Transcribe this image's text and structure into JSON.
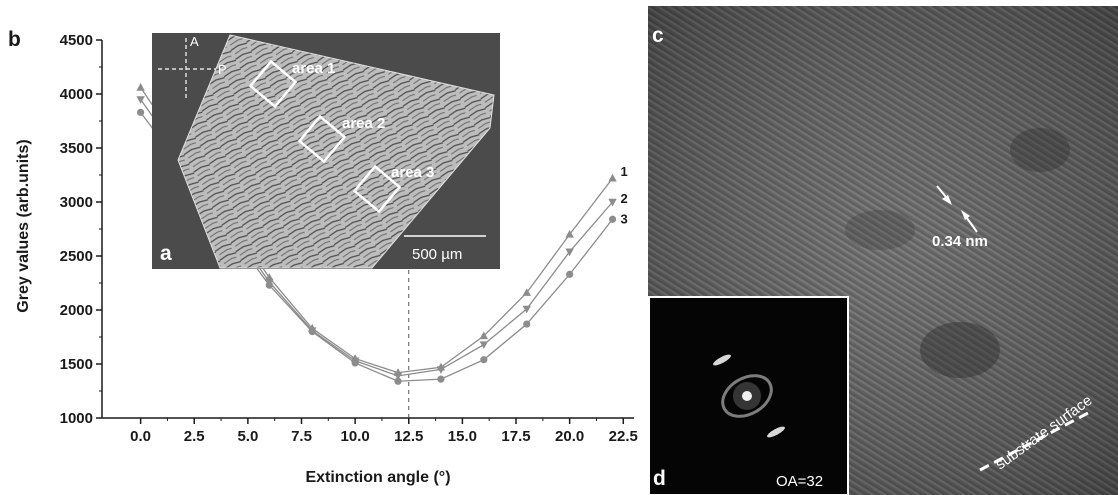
{
  "panels": {
    "b": {
      "letter": "b"
    },
    "a": {
      "letter": "a",
      "scale_bar_text": "500 µm",
      "polarizer_labels": [
        "A",
        "P"
      ],
      "areas": [
        "area 1",
        "area 2",
        "area 3"
      ]
    },
    "c": {
      "letter": "c",
      "spacing_label": "0.34 nm",
      "surface_label": "substrate surface"
    },
    "d": {
      "letter": "d",
      "oa_label": "OA=32"
    }
  },
  "colors": {
    "series": "#8c8c8c",
    "axis": "#1a1a1a",
    "tem_bg": "#5a5a5a",
    "fft_bg": "#050505"
  },
  "chart_data": {
    "type": "line",
    "xlabel": "Extinction angle (°)",
    "ylabel": "Grey values (arb.units)",
    "xlim": [
      -1.8,
      23
    ],
    "ylim": [
      1000,
      4500
    ],
    "x_ticks": [
      "0.0",
      "2.5",
      "5.0",
      "7.5",
      "10.0",
      "12.5",
      "15.0",
      "17.5",
      "20.0",
      "22.5"
    ],
    "y_ticks": [
      "1000",
      "1500",
      "2000",
      "2500",
      "3000",
      "3500",
      "4000",
      "4500"
    ],
    "reference_line_x": 12.5,
    "x": [
      0,
      6,
      8,
      10,
      12,
      14,
      16,
      18,
      20,
      22
    ],
    "series": [
      {
        "name": "1",
        "marker": "triangle-up",
        "values": [
          4060,
          2300,
          1830,
          1550,
          1420,
          1470,
          1760,
          2160,
          2700,
          3220
        ]
      },
      {
        "name": "2",
        "marker": "triangle-down",
        "values": [
          3950,
          2260,
          1810,
          1530,
          1390,
          1450,
          1680,
          2010,
          2540,
          3000
        ]
      },
      {
        "name": "3",
        "marker": "circle",
        "values": [
          3830,
          2230,
          1800,
          1510,
          1340,
          1360,
          1540,
          1870,
          2330,
          2840
        ]
      }
    ]
  }
}
